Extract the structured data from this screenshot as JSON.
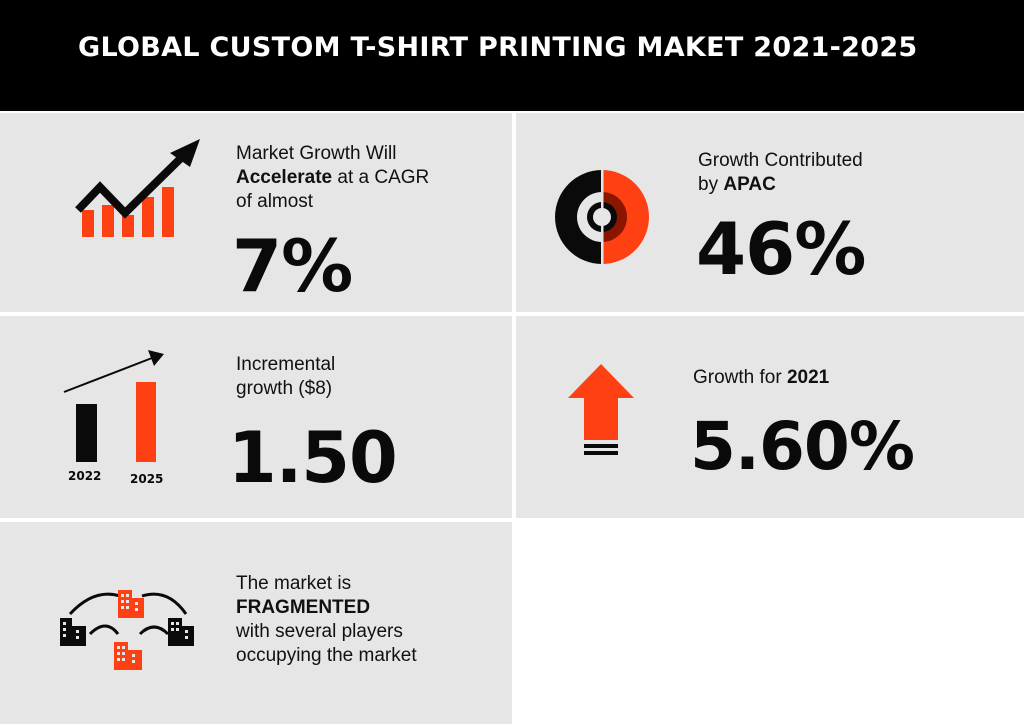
{
  "header": {
    "title": "GLOBAL CUSTOM T-SHIRT PRINTING MAKET 2021-2025"
  },
  "cagr": {
    "line1": "Market Growth Will",
    "line2_bold": "Accelerate",
    "line2_rest": " at a CAGR",
    "line3": "of almost",
    "value": "7%"
  },
  "apac": {
    "line1": "Growth Contributed",
    "line2_prefix": "by ",
    "line2_bold": "APAC",
    "value": "46%"
  },
  "incremental": {
    "line1": "Incremental",
    "line2": "growth ($8)",
    "value": "1.50",
    "year_start": "2022",
    "year_end": "2025"
  },
  "growth2021": {
    "prefix": "Growth for ",
    "year_bold": "2021",
    "value": "5.60%"
  },
  "fragmented": {
    "line1": "The market is",
    "line2_bold": "FRAGMENTED",
    "line3": "with several players",
    "line4": "occupying the market"
  },
  "colors": {
    "accent": "#ff4012",
    "dark": "#0a0a0a",
    "panel": "#e6e6e6",
    "header": "#000000"
  },
  "icons": [
    "growth-chart-icon",
    "donut-target-icon",
    "bar-comparison-icon",
    "up-arrow-icon",
    "buildings-network-icon"
  ]
}
